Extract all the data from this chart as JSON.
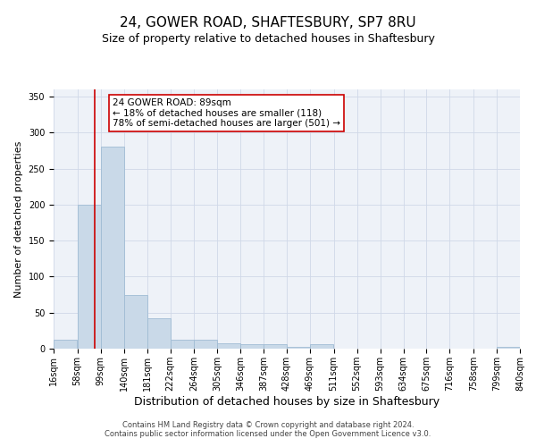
{
  "title1": "24, GOWER ROAD, SHAFTESBURY, SP7 8RU",
  "title2": "Size of property relative to detached houses in Shaftesbury",
  "xlabel": "Distribution of detached houses by size in Shaftesbury",
  "ylabel": "Number of detached properties",
  "footnote": "Contains HM Land Registry data © Crown copyright and database right 2024.\nContains public sector information licensed under the Open Government Licence v3.0.",
  "bin_edges": [
    16,
    58,
    99,
    140,
    181,
    222,
    264,
    305,
    346,
    387,
    428,
    469,
    511,
    552,
    593,
    634,
    675,
    716,
    758,
    799,
    840
  ],
  "bar_heights": [
    13,
    200,
    280,
    75,
    42,
    13,
    13,
    8,
    6,
    6,
    3,
    6,
    0,
    0,
    0,
    0,
    0,
    0,
    0,
    3
  ],
  "bar_color": "#c9d9e8",
  "bar_edge_color": "#a0bcd4",
  "grid_color": "#d0d8e8",
  "background_color": "#eef2f8",
  "property_size": 89,
  "red_line_color": "#cc0000",
  "annotation_line1": "24 GOWER ROAD: 89sqm",
  "annotation_line2": "← 18% of detached houses are smaller (118)",
  "annotation_line3": "78% of semi-detached houses are larger (501) →",
  "annotation_box_color": "white",
  "annotation_box_edge_color": "#cc0000",
  "ylim": [
    0,
    360
  ],
  "yticks": [
    0,
    50,
    100,
    150,
    200,
    250,
    300,
    350
  ],
  "title1_fontsize": 11,
  "title2_fontsize": 9,
  "xlabel_fontsize": 9,
  "ylabel_fontsize": 8,
  "tick_label_fontsize": 7,
  "annotation_fontsize": 7.5
}
